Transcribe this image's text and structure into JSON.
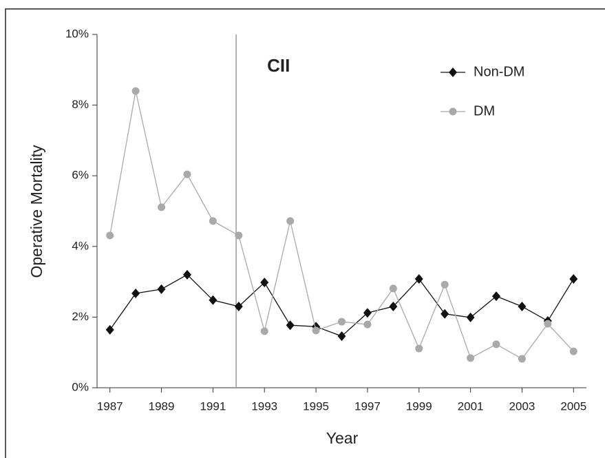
{
  "chart_data": {
    "type": "line",
    "x": [
      1987,
      1988,
      1989,
      1990,
      1991,
      1992,
      1993,
      1994,
      1995,
      1996,
      1997,
      1998,
      1999,
      2000,
      2001,
      2002,
      2003,
      2004,
      2005
    ],
    "series": [
      {
        "name": "Non-DM",
        "color": "#111111",
        "marker": "diamond",
        "values": [
          1.64,
          2.67,
          2.79,
          3.2,
          2.48,
          2.3,
          2.98,
          1.77,
          1.73,
          1.46,
          2.12,
          2.3,
          3.08,
          2.09,
          1.99,
          2.59,
          2.3,
          1.89,
          3.08
        ]
      },
      {
        "name": "DM",
        "color": "#a9a9a9",
        "marker": "circle",
        "values": [
          4.31,
          8.4,
          5.11,
          6.04,
          4.72,
          4.31,
          1.6,
          4.72,
          1.62,
          1.87,
          1.79,
          2.81,
          1.11,
          2.92,
          0.84,
          1.23,
          0.82,
          1.81,
          1.03
        ]
      }
    ],
    "xlabel": "Year",
    "ylabel": "Operative Mortality",
    "xlim": [
      1986.5,
      2005.5
    ],
    "ylim": [
      0,
      10
    ],
    "xticks": [
      1987,
      1989,
      1991,
      1993,
      1995,
      1997,
      1999,
      2001,
      2003,
      2005
    ],
    "yticks": [
      {
        "value": 0,
        "label": "0%"
      },
      {
        "value": 2,
        "label": "2%"
      },
      {
        "value": 4,
        "label": "4%"
      },
      {
        "value": 6,
        "label": "6%"
      },
      {
        "value": 8,
        "label": "8%"
      },
      {
        "value": 10,
        "label": "10%"
      }
    ],
    "annotation": {
      "text": "CII",
      "x": 1991.9
    },
    "legend": "upper right"
  }
}
